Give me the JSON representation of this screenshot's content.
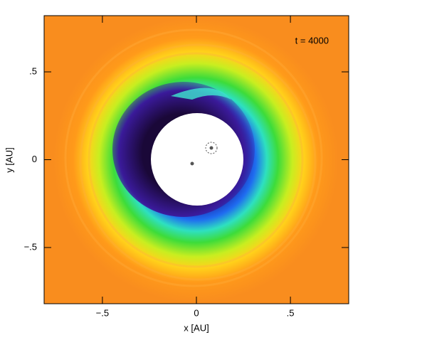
{
  "chart_data": {
    "type": "heatmap",
    "annotation": "t = 4000",
    "xlabel": "x [AU]",
    "ylabel": "y [AU]",
    "xlim": [
      -0.81,
      0.81
    ],
    "ylim": [
      -0.82,
      0.82
    ],
    "xticks": [
      {
        "value": -0.5,
        "label": "−.5"
      },
      0,
      {
        "value": 0.5,
        "label": ".5"
      }
    ],
    "yticks": [
      {
        "value": -0.5,
        "label": "−.5"
      },
      0,
      {
        "value": 0.5,
        "label": ".5"
      }
    ]
  }
}
